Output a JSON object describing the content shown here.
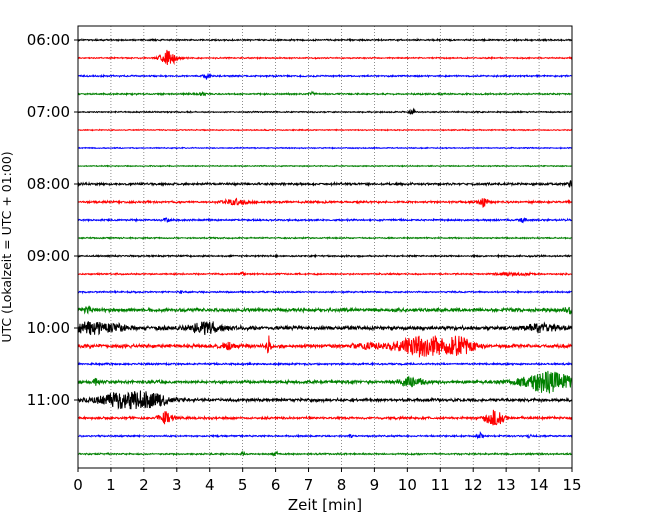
{
  "chart_data": {
    "type": "line",
    "title": "",
    "xlabel": "Zeit  [min]",
    "ylabel": "UTC (Lokalzeit = UTC + 01:00)",
    "xlim": [
      0,
      15
    ],
    "x_ticks": [
      "0",
      "1",
      "2",
      "3",
      "4",
      "5",
      "6",
      "7",
      "8",
      "9",
      "10",
      "11",
      "12",
      "13",
      "14",
      "15"
    ],
    "y_tick_labels": [
      "06:00",
      "07:00",
      "08:00",
      "09:00",
      "10:00",
      "11:00"
    ],
    "grid": "vertical dotted at each minute",
    "trace_interval_minutes": 15,
    "color_cycle": [
      "#000000",
      "#ff0000",
      "#0000ff",
      "#008000"
    ],
    "series": [
      {
        "start": "06:00",
        "color": "#000000",
        "amp": 0.6,
        "events": []
      },
      {
        "start": "06:15",
        "color": "#ff0000",
        "amp": 0.5,
        "events": [
          [
            2.75,
            8,
            0.25
          ]
        ]
      },
      {
        "start": "06:30",
        "color": "#0000ff",
        "amp": 0.6,
        "events": [
          [
            3.9,
            3,
            0.1
          ]
        ]
      },
      {
        "start": "06:45",
        "color": "#008000",
        "amp": 0.6,
        "events": [
          [
            3.75,
            2,
            0.1
          ],
          [
            7.1,
            2,
            0.08
          ]
        ]
      },
      {
        "start": "07:00",
        "color": "#000000",
        "amp": 0.5,
        "events": [
          [
            10.15,
            3,
            0.08
          ]
        ]
      },
      {
        "start": "07:15",
        "color": "#ff0000",
        "amp": 0.4,
        "events": []
      },
      {
        "start": "07:30",
        "color": "#0000ff",
        "amp": 0.4,
        "events": []
      },
      {
        "start": "07:45",
        "color": "#008000",
        "amp": 0.4,
        "events": []
      },
      {
        "start": "08:00",
        "color": "#000000",
        "amp": 0.9,
        "events": [
          [
            14.95,
            3,
            0.1
          ]
        ]
      },
      {
        "start": "08:15",
        "color": "#ff0000",
        "amp": 0.8,
        "events": [
          [
            4.8,
            2.5,
            0.4
          ],
          [
            12.3,
            4,
            0.15
          ]
        ]
      },
      {
        "start": "08:30",
        "color": "#0000ff",
        "amp": 0.7,
        "events": [
          [
            2.7,
            2,
            0.1
          ],
          [
            13.5,
            2,
            0.1
          ]
        ]
      },
      {
        "start": "08:45",
        "color": "#008000",
        "amp": 0.5,
        "events": []
      },
      {
        "start": "09:00",
        "color": "#000000",
        "amp": 0.6,
        "events": []
      },
      {
        "start": "09:15",
        "color": "#ff0000",
        "amp": 0.6,
        "events": [
          [
            5.0,
            2,
            0.06
          ],
          [
            13.2,
            1.5,
            0.5
          ]
        ]
      },
      {
        "start": "09:30",
        "color": "#0000ff",
        "amp": 0.6,
        "events": [
          [
            3.1,
            2,
            0.06
          ]
        ]
      },
      {
        "start": "09:45",
        "color": "#008000",
        "amp": 1.4,
        "events": [
          [
            0.3,
            2.5,
            0.15
          ],
          [
            14.9,
            3,
            0.12
          ]
        ]
      },
      {
        "start": "10:00",
        "color": "#000000",
        "amp": 1.6,
        "events": [
          [
            0.4,
            5.5,
            0.5
          ],
          [
            1.2,
            2.5,
            0.4
          ],
          [
            3.9,
            5.5,
            0.5
          ],
          [
            14.1,
            3.5,
            0.5
          ]
        ]
      },
      {
        "start": "10:15",
        "color": "#ff0000",
        "amp": 1.4,
        "events": [
          [
            4.5,
            4,
            0.2
          ],
          [
            5.8,
            9,
            0.07
          ],
          [
            8.8,
            2.5,
            0.4
          ],
          [
            10.6,
            10,
            0.9
          ],
          [
            11.6,
            6,
            0.4
          ]
        ]
      },
      {
        "start": "10:30",
        "color": "#0000ff",
        "amp": 0.7,
        "events": []
      },
      {
        "start": "10:45",
        "color": "#008000",
        "amp": 1.2,
        "events": [
          [
            0.55,
            3,
            0.1
          ],
          [
            10.1,
            4,
            0.4
          ],
          [
            14.3,
            10,
            0.8
          ]
        ]
      },
      {
        "start": "11:00",
        "color": "#000000",
        "amp": 1.2,
        "events": [
          [
            1.55,
            8,
            0.9
          ],
          [
            2.3,
            3,
            0.5
          ]
        ]
      },
      {
        "start": "11:15",
        "color": "#ff0000",
        "amp": 0.9,
        "events": [
          [
            2.65,
            6,
            0.2
          ],
          [
            12.65,
            9,
            0.25
          ]
        ]
      },
      {
        "start": "11:30",
        "color": "#0000ff",
        "amp": 0.6,
        "events": [
          [
            8.3,
            2,
            0.05
          ],
          [
            12.2,
            3,
            0.1
          ],
          [
            13.7,
            2,
            0.06
          ]
        ]
      },
      {
        "start": "11:45",
        "color": "#008000",
        "amp": 0.6,
        "events": [
          [
            5.0,
            2,
            0.06
          ],
          [
            6.0,
            2,
            0.06
          ]
        ]
      }
    ]
  }
}
